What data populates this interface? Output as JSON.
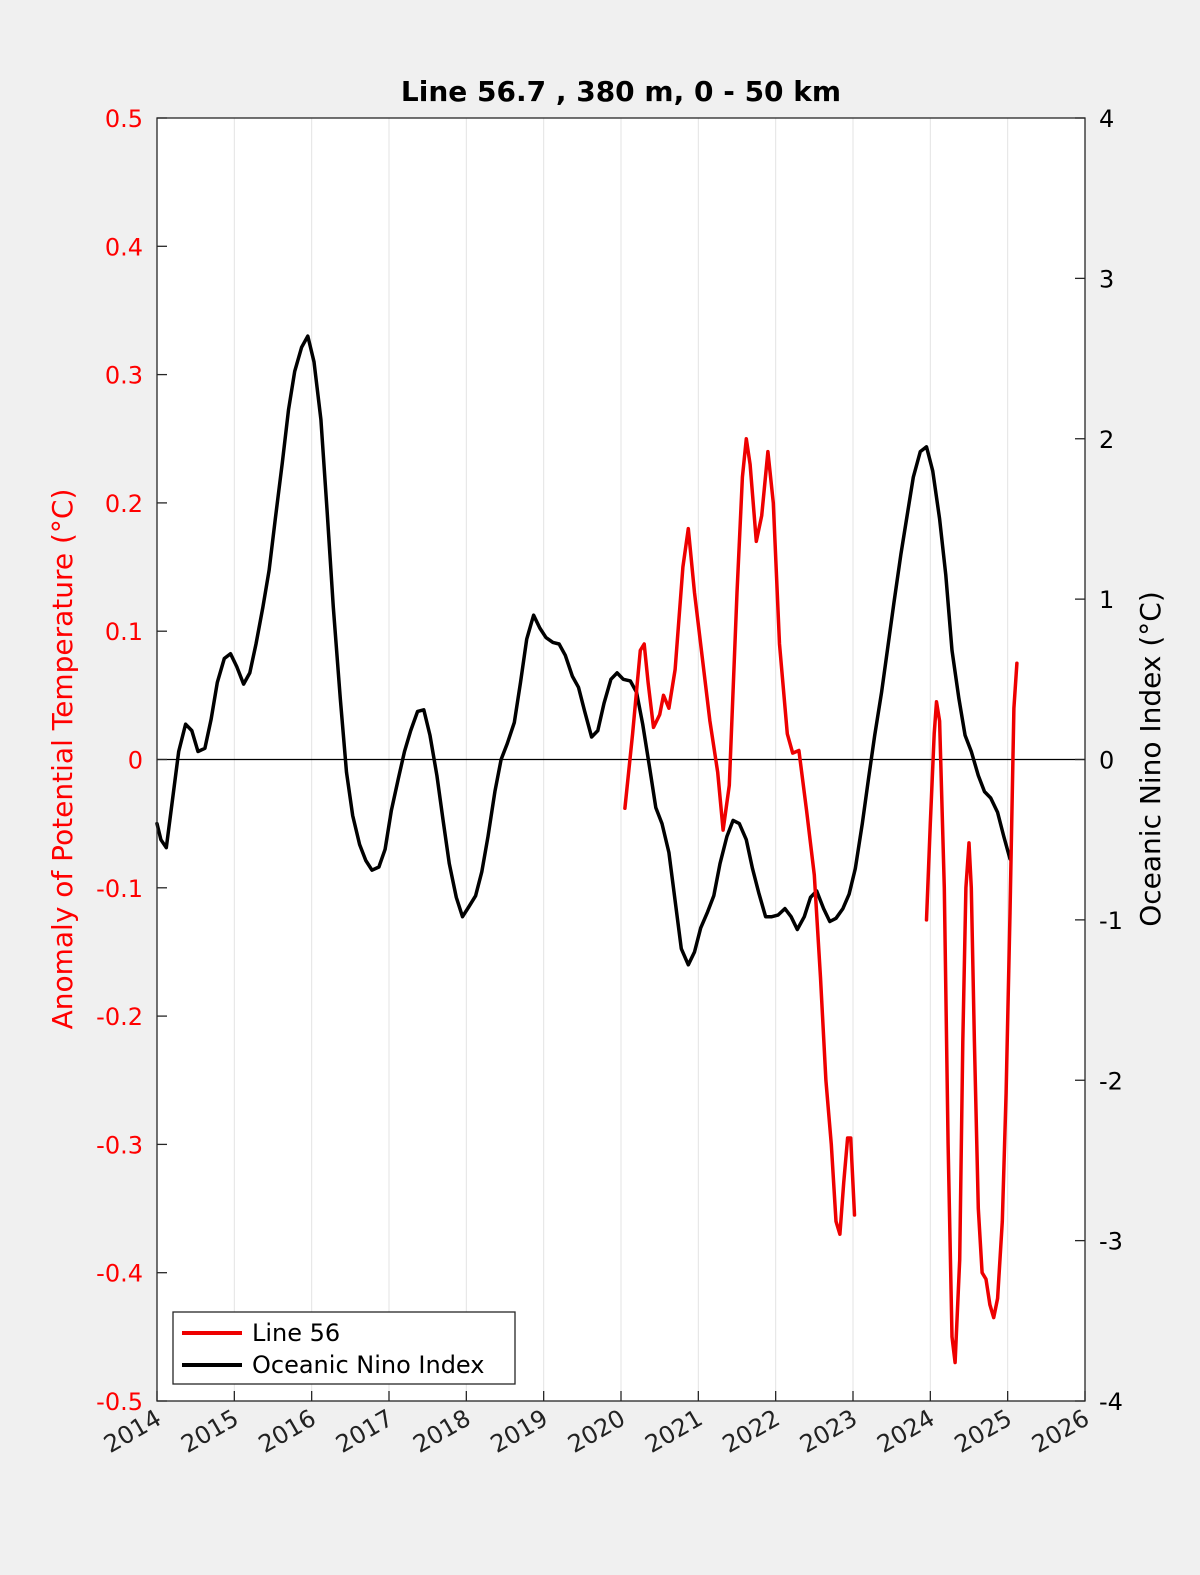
{
  "chart_data": {
    "type": "line",
    "title": "Line 56.7 , 380 m, 0 - 50 km",
    "xlabel": "",
    "ylabel_left": "Anomaly of Potential Temperature (°C)",
    "ylabel_right": "Oceanic Nino Index (°C)",
    "xlim": [
      2014,
      2026
    ],
    "ylim_left": [
      -0.5,
      0.5
    ],
    "ylim_right": [
      -4,
      4
    ],
    "x_ticks": [
      "2014",
      "2015",
      "2016",
      "2017",
      "2018",
      "2019",
      "2020",
      "2021",
      "2022",
      "2023",
      "2024",
      "2025",
      "2026"
    ],
    "y_left_ticks": [
      "-0.5",
      "-0.4",
      "-0.3",
      "-0.2",
      "-0.1",
      "0",
      "0.1",
      "0.2",
      "0.3",
      "0.4",
      "0.5"
    ],
    "y_right_ticks": [
      "-4",
      "-3",
      "-2",
      "-1",
      "0",
      "1",
      "2",
      "3",
      "4"
    ],
    "grid": "vertical",
    "zero_line": true,
    "legend_position": "bottom-left",
    "colors": {
      "left_axis": "#ff0000",
      "line56": "#ee0000",
      "oni": "#000000",
      "grid": "#e3e3e3"
    },
    "series": [
      {
        "name": "Line 56",
        "axis": "left",
        "segments": [
          [
            [
              2020.05,
              -0.038
            ],
            [
              2020.15,
              0.02
            ],
            [
              2020.25,
              0.085
            ],
            [
              2020.3,
              0.09
            ],
            [
              2020.35,
              0.06
            ],
            [
              2020.42,
              0.025
            ],
            [
              2020.5,
              0.035
            ],
            [
              2020.55,
              0.05
            ],
            [
              2020.62,
              0.04
            ],
            [
              2020.7,
              0.07
            ],
            [
              2020.8,
              0.15
            ],
            [
              2020.87,
              0.18
            ],
            [
              2020.95,
              0.13
            ],
            [
              2021.05,
              0.08
            ],
            [
              2021.15,
              0.03
            ],
            [
              2021.25,
              -0.01
            ],
            [
              2021.32,
              -0.055
            ],
            [
              2021.4,
              -0.02
            ],
            [
              2021.5,
              0.13
            ],
            [
              2021.57,
              0.22
            ],
            [
              2021.62,
              0.25
            ],
            [
              2021.67,
              0.23
            ],
            [
              2021.75,
              0.17
            ],
            [
              2021.82,
              0.19
            ],
            [
              2021.9,
              0.24
            ],
            [
              2021.97,
              0.2
            ],
            [
              2022.05,
              0.09
            ],
            [
              2022.15,
              0.02
            ],
            [
              2022.22,
              0.005
            ],
            [
              2022.3,
              0.007
            ],
            [
              2022.4,
              -0.04
            ],
            [
              2022.5,
              -0.09
            ],
            [
              2022.58,
              -0.17
            ],
            [
              2022.65,
              -0.25
            ],
            [
              2022.72,
              -0.3
            ],
            [
              2022.78,
              -0.36
            ],
            [
              2022.83,
              -0.37
            ],
            [
              2022.88,
              -0.33
            ],
            [
              2022.93,
              -0.295
            ],
            [
              2022.97,
              -0.295
            ],
            [
              2023.02,
              -0.355
            ]
          ],
          [
            [
              2023.95,
              -0.125
            ],
            [
              2024.0,
              -0.05
            ],
            [
              2024.05,
              0.02
            ],
            [
              2024.08,
              0.045
            ],
            [
              2024.12,
              0.03
            ],
            [
              2024.18,
              -0.1
            ],
            [
              2024.23,
              -0.3
            ],
            [
              2024.28,
              -0.45
            ],
            [
              2024.32,
              -0.47
            ],
            [
              2024.38,
              -0.39
            ],
            [
              2024.42,
              -0.22
            ],
            [
              2024.46,
              -0.1
            ],
            [
              2024.5,
              -0.065
            ],
            [
              2024.53,
              -0.1
            ],
            [
              2024.57,
              -0.22
            ],
            [
              2024.62,
              -0.35
            ],
            [
              2024.67,
              -0.4
            ],
            [
              2024.72,
              -0.405
            ],
            [
              2024.77,
              -0.425
            ],
            [
              2024.82,
              -0.435
            ],
            [
              2024.87,
              -0.42
            ],
            [
              2024.93,
              -0.36
            ],
            [
              2024.98,
              -0.26
            ],
            [
              2025.03,
              -0.12
            ],
            [
              2025.08,
              0.04
            ],
            [
              2025.12,
              0.075
            ]
          ]
        ]
      },
      {
        "name": "Oceanic Nino Index",
        "axis": "right",
        "points": [
          [
            2014.0,
            -0.4
          ],
          [
            2014.05,
            -0.5
          ],
          [
            2014.12,
            -0.55
          ],
          [
            2014.2,
            -0.25
          ],
          [
            2014.28,
            0.05
          ],
          [
            2014.37,
            0.22
          ],
          [
            2014.45,
            0.18
          ],
          [
            2014.53,
            0.05
          ],
          [
            2014.62,
            0.07
          ],
          [
            2014.7,
            0.25
          ],
          [
            2014.78,
            0.48
          ],
          [
            2014.87,
            0.63
          ],
          [
            2014.95,
            0.66
          ],
          [
            2015.03,
            0.58
          ],
          [
            2015.12,
            0.47
          ],
          [
            2015.2,
            0.54
          ],
          [
            2015.28,
            0.72
          ],
          [
            2015.37,
            0.95
          ],
          [
            2015.45,
            1.18
          ],
          [
            2015.53,
            1.5
          ],
          [
            2015.62,
            1.85
          ],
          [
            2015.7,
            2.18
          ],
          [
            2015.78,
            2.42
          ],
          [
            2015.87,
            2.57
          ],
          [
            2015.95,
            2.64
          ],
          [
            2016.03,
            2.48
          ],
          [
            2016.12,
            2.12
          ],
          [
            2016.2,
            1.55
          ],
          [
            2016.28,
            0.95
          ],
          [
            2016.37,
            0.38
          ],
          [
            2016.45,
            -0.08
          ],
          [
            2016.53,
            -0.35
          ],
          [
            2016.62,
            -0.53
          ],
          [
            2016.7,
            -0.63
          ],
          [
            2016.78,
            -0.69
          ],
          [
            2016.87,
            -0.67
          ],
          [
            2016.95,
            -0.56
          ],
          [
            2017.03,
            -0.32
          ],
          [
            2017.12,
            -0.12
          ],
          [
            2017.2,
            0.05
          ],
          [
            2017.28,
            0.18
          ],
          [
            2017.37,
            0.3
          ],
          [
            2017.45,
            0.31
          ],
          [
            2017.53,
            0.15
          ],
          [
            2017.62,
            -0.1
          ],
          [
            2017.7,
            -0.38
          ],
          [
            2017.78,
            -0.65
          ],
          [
            2017.87,
            -0.86
          ],
          [
            2017.95,
            -0.98
          ],
          [
            2018.03,
            -0.92
          ],
          [
            2018.12,
            -0.85
          ],
          [
            2018.2,
            -0.7
          ],
          [
            2018.28,
            -0.48
          ],
          [
            2018.37,
            -0.2
          ],
          [
            2018.45,
            0.0
          ],
          [
            2018.53,
            0.1
          ],
          [
            2018.62,
            0.23
          ],
          [
            2018.7,
            0.48
          ],
          [
            2018.78,
            0.75
          ],
          [
            2018.87,
            0.9
          ],
          [
            2018.95,
            0.82
          ],
          [
            2019.03,
            0.76
          ],
          [
            2019.12,
            0.73
          ],
          [
            2019.2,
            0.72
          ],
          [
            2019.28,
            0.65
          ],
          [
            2019.37,
            0.52
          ],
          [
            2019.45,
            0.45
          ],
          [
            2019.53,
            0.3
          ],
          [
            2019.62,
            0.14
          ],
          [
            2019.7,
            0.18
          ],
          [
            2019.78,
            0.35
          ],
          [
            2019.87,
            0.5
          ],
          [
            2019.95,
            0.54
          ],
          [
            2020.03,
            0.5
          ],
          [
            2020.12,
            0.49
          ],
          [
            2020.2,
            0.42
          ],
          [
            2020.28,
            0.22
          ],
          [
            2020.37,
            -0.05
          ],
          [
            2020.45,
            -0.3
          ],
          [
            2020.53,
            -0.4
          ],
          [
            2020.62,
            -0.58
          ],
          [
            2020.7,
            -0.88
          ],
          [
            2020.78,
            -1.18
          ],
          [
            2020.87,
            -1.28
          ],
          [
            2020.95,
            -1.2
          ],
          [
            2021.03,
            -1.05
          ],
          [
            2021.12,
            -0.95
          ],
          [
            2021.2,
            -0.85
          ],
          [
            2021.28,
            -0.65
          ],
          [
            2021.37,
            -0.48
          ],
          [
            2021.45,
            -0.38
          ],
          [
            2021.53,
            -0.4
          ],
          [
            2021.62,
            -0.5
          ],
          [
            2021.7,
            -0.68
          ],
          [
            2021.78,
            -0.83
          ],
          [
            2021.87,
            -0.98
          ],
          [
            2021.95,
            -0.98
          ],
          [
            2022.03,
            -0.97
          ],
          [
            2022.12,
            -0.93
          ],
          [
            2022.2,
            -0.98
          ],
          [
            2022.28,
            -1.06
          ],
          [
            2022.37,
            -0.98
          ],
          [
            2022.45,
            -0.86
          ],
          [
            2022.53,
            -0.82
          ],
          [
            2022.62,
            -0.93
          ],
          [
            2022.7,
            -1.01
          ],
          [
            2022.78,
            -0.99
          ],
          [
            2022.87,
            -0.93
          ],
          [
            2022.95,
            -0.84
          ],
          [
            2023.03,
            -0.68
          ],
          [
            2023.12,
            -0.4
          ],
          [
            2023.2,
            -0.12
          ],
          [
            2023.28,
            0.15
          ],
          [
            2023.37,
            0.42
          ],
          [
            2023.45,
            0.7
          ],
          [
            2023.53,
            0.98
          ],
          [
            2023.62,
            1.28
          ],
          [
            2023.7,
            1.52
          ],
          [
            2023.78,
            1.76
          ],
          [
            2023.87,
            1.92
          ],
          [
            2023.95,
            1.95
          ],
          [
            2024.03,
            1.8
          ],
          [
            2024.12,
            1.5
          ],
          [
            2024.2,
            1.15
          ],
          [
            2024.28,
            0.68
          ],
          [
            2024.37,
            0.38
          ],
          [
            2024.45,
            0.15
          ],
          [
            2024.53,
            0.05
          ],
          [
            2024.62,
            -0.1
          ],
          [
            2024.7,
            -0.2
          ],
          [
            2024.78,
            -0.24
          ],
          [
            2024.87,
            -0.33
          ],
          [
            2024.95,
            -0.48
          ],
          [
            2025.03,
            -0.62
          ]
        ]
      }
    ]
  }
}
